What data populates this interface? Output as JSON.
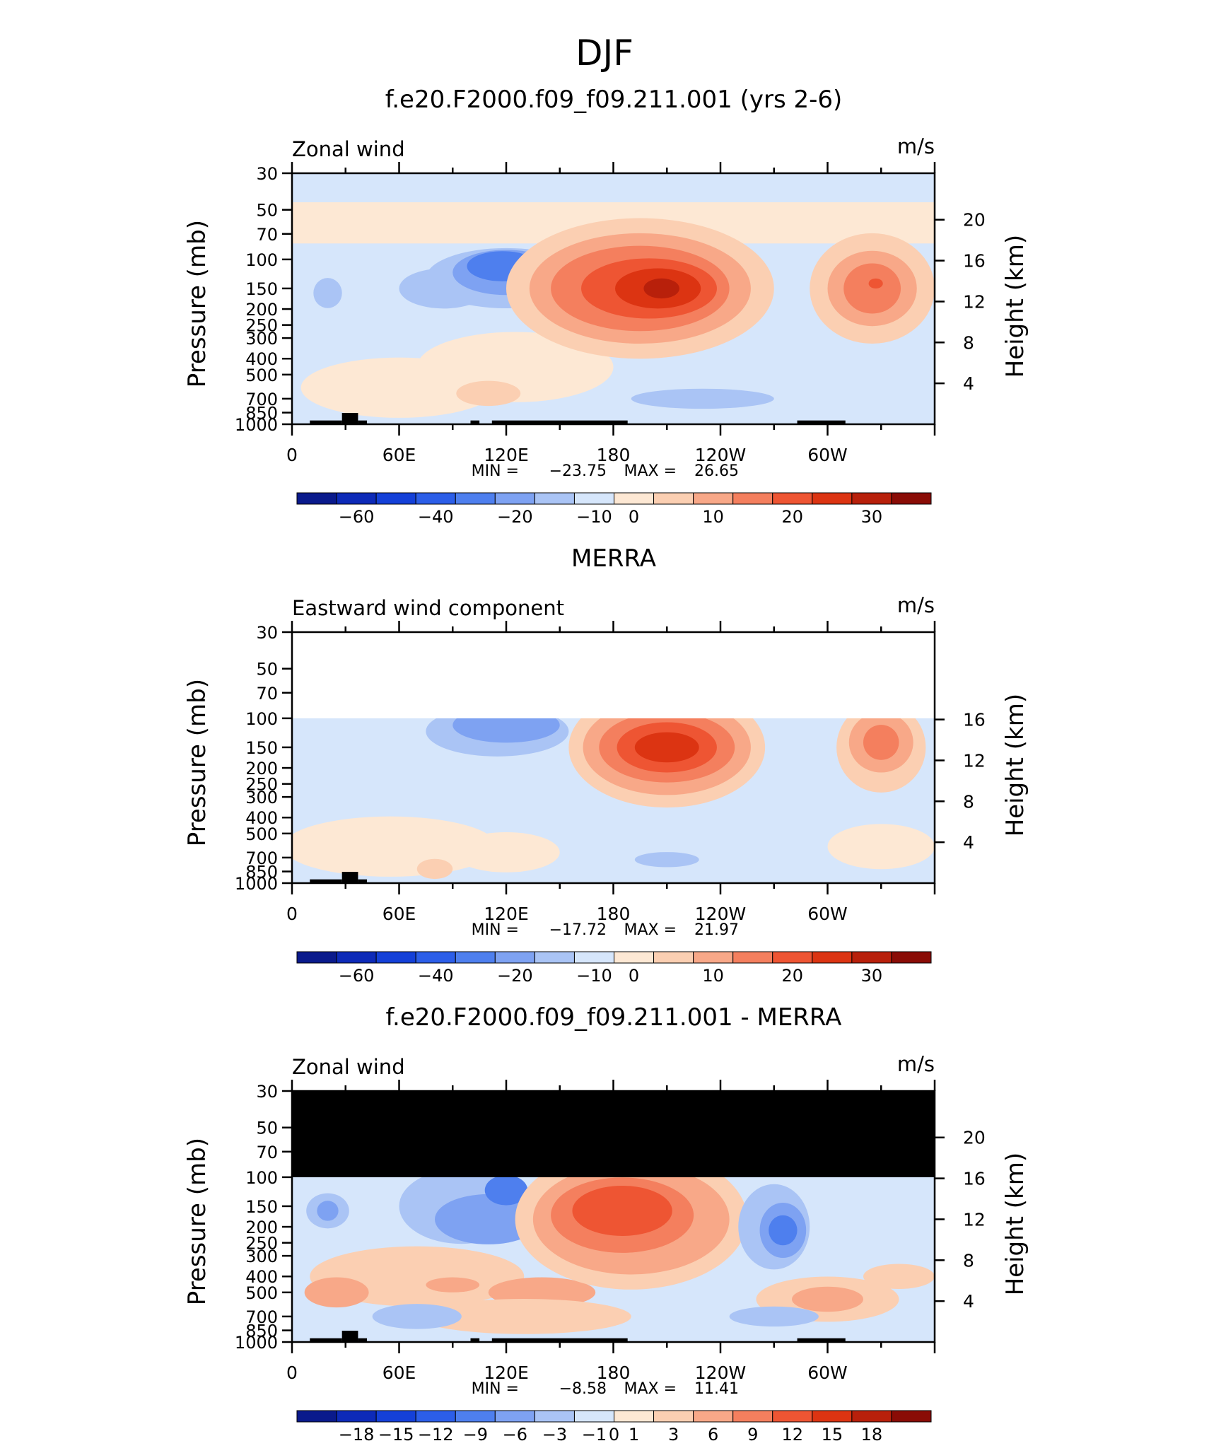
{
  "figure": {
    "season_title": "DJF",
    "height_axis_label": "Height (km)",
    "pressure_axis_label": "Pressure (mb)"
  },
  "chart_data": [
    {
      "type": "heatmap",
      "panel_title": "f.e20.F2000.f09_f09.211.001 (yrs 2-6)",
      "variable_label": "Zonal wind",
      "units_label": "m/s",
      "ylabel": "Pressure (mb)",
      "y2label": "Height (km)",
      "pressure_levels": [
        "30",
        "50",
        "70",
        "100",
        "150",
        "200",
        "250",
        "300",
        "400",
        "500",
        "700",
        "850",
        "1000"
      ],
      "height_ticks": [
        "20",
        "16",
        "12",
        "8",
        "4"
      ],
      "lon_tick_labels": [
        "0",
        "60E",
        "120E",
        "180",
        "120W",
        "60W"
      ],
      "stats": {
        "min_label": "MIN =",
        "min": "−23.75",
        "max_label": "MAX =",
        "max": "26.65"
      },
      "colorbar_labels": [
        "−60",
        "−40",
        "−20",
        "−10",
        "0",
        "10",
        "20",
        "30"
      ],
      "colorbar_colors": [
        "#0a1a8c",
        "#0d2ab8",
        "#1440d8",
        "#2c5ee8",
        "#4e7fee",
        "#7ea2f2",
        "#aac4f5",
        "#d6e6fb",
        "#fde8d4",
        "#fbcfb2",
        "#f8a888",
        "#f47f5e",
        "#ee5533",
        "#dc3412",
        "#b8200b",
        "#8a0c06"
      ],
      "max_level": "MAX =  26.65"
    },
    {
      "type": "heatmap",
      "panel_title": "MERRA",
      "variable_label": "Eastward wind component",
      "units_label": "m/s",
      "ylabel": "Pressure (mb)",
      "y2label": "Height (km)",
      "pressure_levels": [
        "30",
        "50",
        "70",
        "100",
        "150",
        "200",
        "250",
        "300",
        "400",
        "500",
        "700",
        "850",
        "1000"
      ],
      "height_ticks": [
        "16",
        "12",
        "8",
        "4"
      ],
      "lon_tick_labels": [
        "0",
        "60E",
        "120E",
        "180",
        "120W",
        "60W"
      ],
      "stats": {
        "min_label": "MIN =",
        "min": "−17.72",
        "max_label": "MAX =",
        "max": "21.97"
      },
      "colorbar_labels": [
        "−60",
        "−40",
        "−20",
        "−10",
        "0",
        "10",
        "20",
        "30"
      ],
      "colorbar_colors": [
        "#0a1a8c",
        "#0d2ab8",
        "#1440d8",
        "#2c5ee8",
        "#4e7fee",
        "#7ea2f2",
        "#aac4f5",
        "#d6e6fb",
        "#fde8d4",
        "#fbcfb2",
        "#f8a888",
        "#f47f5e",
        "#ee5533",
        "#dc3412",
        "#b8200b",
        "#8a0c06"
      ]
    },
    {
      "type": "heatmap",
      "panel_title": "f.e20.F2000.f09_f09.211.001 - MERRA",
      "variable_label": "Zonal wind",
      "units_label": "m/s",
      "ylabel": "Pressure (mb)",
      "y2label": "Height (km)",
      "pressure_levels": [
        "30",
        "50",
        "70",
        "100",
        "150",
        "200",
        "250",
        "300",
        "400",
        "500",
        "700",
        "850",
        "1000"
      ],
      "height_ticks": [
        "20",
        "16",
        "12",
        "8",
        "4"
      ],
      "lon_tick_labels": [
        "0",
        "60E",
        "120E",
        "180",
        "120W",
        "60W"
      ],
      "stats": {
        "min_label": "MIN =",
        "min": "−8.58",
        "max_label": "MAX =",
        "max": "11.41"
      },
      "colorbar_labels": [
        "−18",
        "−15",
        "−12",
        "−9",
        "−6",
        "−3",
        "−1",
        "0",
        "1",
        "3",
        "6",
        "9",
        "12",
        "15",
        "18"
      ],
      "colorbar_colors": [
        "#0a1a8c",
        "#0d2ab8",
        "#1440d8",
        "#2c5ee8",
        "#4e7fee",
        "#7ea2f2",
        "#aac4f5",
        "#d6e6fb",
        "#fde8d4",
        "#fbcfb2",
        "#f8a888",
        "#f47f5e",
        "#ee5533",
        "#dc3412",
        "#b8200b",
        "#8a0c06"
      ]
    }
  ]
}
